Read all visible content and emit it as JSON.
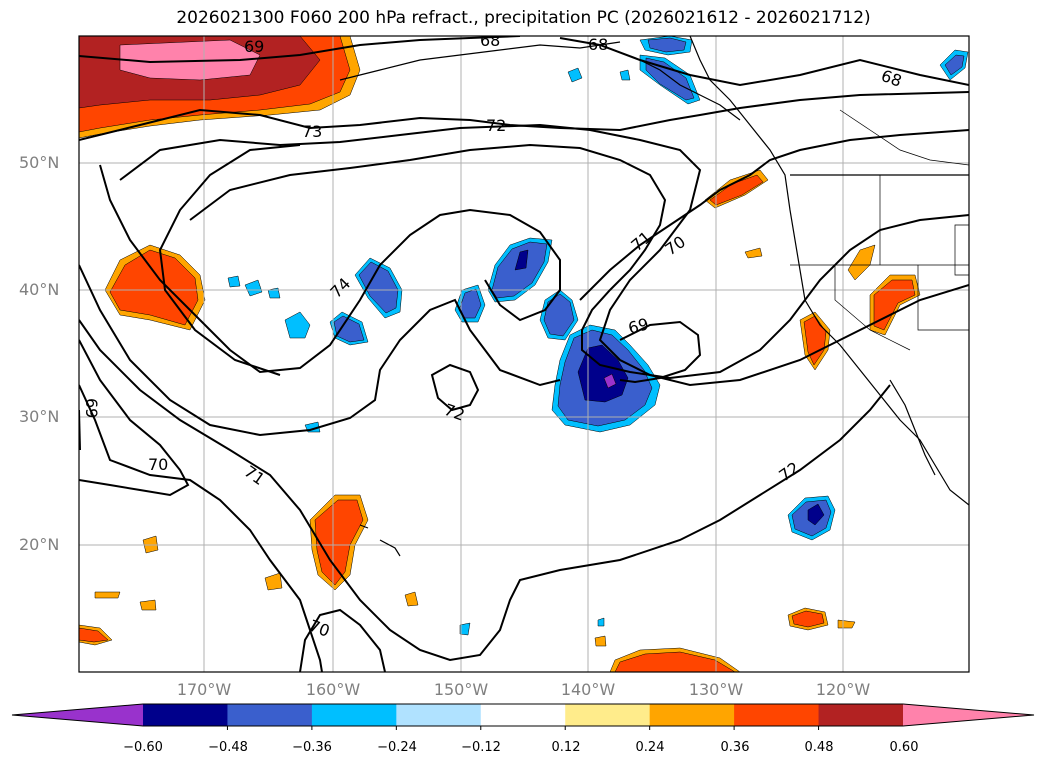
{
  "title": "2026021300 F060 200 hPa refract., precipitation PC (2026021612 - 2026021712)",
  "axes": {
    "lat_ticks": [
      "50°N",
      "40°N",
      "30°N",
      "20°N"
    ],
    "lon_ticks": [
      "170°W",
      "160°W",
      "150°W",
      "140°W",
      "130°W",
      "120°W"
    ]
  },
  "contour_labels": [
    {
      "text": "69"
    },
    {
      "text": "68"
    },
    {
      "text": "68"
    },
    {
      "text": "68"
    },
    {
      "text": "73"
    },
    {
      "text": "72"
    },
    {
      "text": "71"
    },
    {
      "text": "70"
    },
    {
      "text": "74"
    },
    {
      "text": "69"
    },
    {
      "text": "72"
    },
    {
      "text": "70"
    },
    {
      "text": "71"
    },
    {
      "text": "72"
    },
    {
      "text": "70"
    },
    {
      "text": "69"
    }
  ],
  "colorbar": {
    "ticks": [
      "−0.60",
      "−0.48",
      "−0.36",
      "−0.24",
      "−0.12",
      "0.12",
      "0.24",
      "0.36",
      "0.48",
      "0.60"
    ],
    "colors": [
      "#9932cc",
      "#00008b",
      "#3a5fcd",
      "#00bfff",
      "#b0e2ff",
      "#ffffff",
      "#ffec8b",
      "#ffa500",
      "#ff4500",
      "#b22222",
      "#ff82ab"
    ]
  },
  "shading_colors": {
    "neg_strong": "#00008b",
    "neg_mid": "#3a5fcd",
    "neg_weak": "#00bfff",
    "neg_faint": "#b0e2ff",
    "pos_faint": "#ffec8b",
    "pos_weak": "#ffa500",
    "pos_mid": "#ff4500",
    "pos_strong": "#b22222",
    "pos_max": "#ff82ab",
    "purple": "#9932cc"
  }
}
